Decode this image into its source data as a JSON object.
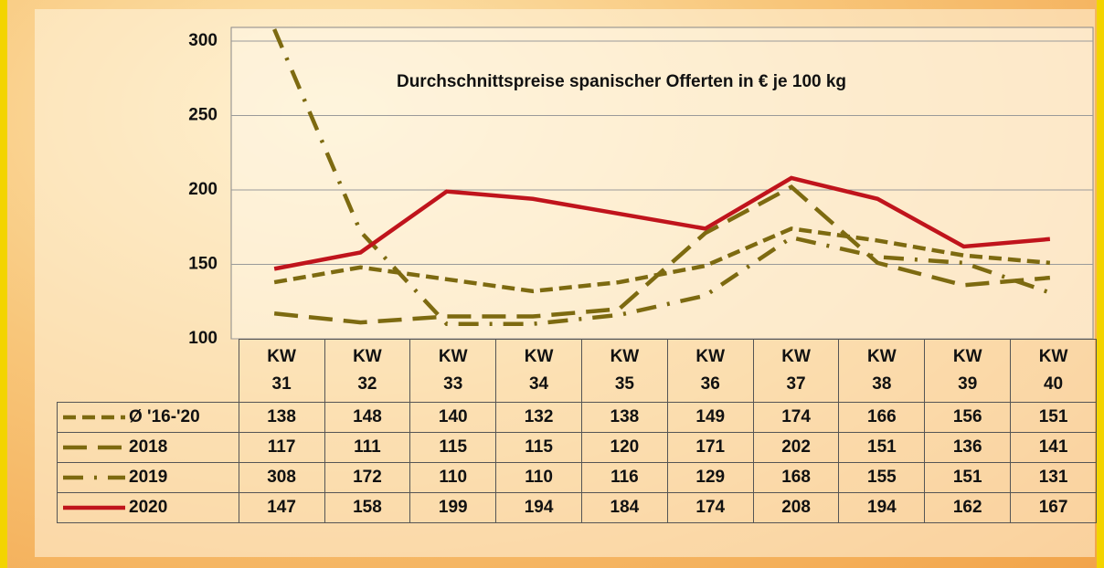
{
  "chart_data": {
    "type": "line",
    "title": "Durchschnittspreise spanischer Offerten in € je 100 kg",
    "categories": [
      "KW 31",
      "KW 32",
      "KW 33",
      "KW 34",
      "KW 35",
      "KW 36",
      "KW 37",
      "KW 38",
      "KW 39",
      "KW 40"
    ],
    "series": [
      {
        "name": "Ø '16-'20",
        "color": "#7d6a10",
        "line_style": "dashed",
        "values": [
          138,
          148,
          140,
          132,
          138,
          149,
          174,
          166,
          156,
          151
        ]
      },
      {
        "name": "2018",
        "color": "#7d6a10",
        "line_style": "long-dash",
        "values": [
          117,
          111,
          115,
          115,
          120,
          171,
          202,
          151,
          136,
          141
        ]
      },
      {
        "name": "2019",
        "color": "#7d6a10",
        "line_style": "dash-dot",
        "values": [
          308,
          172,
          110,
          110,
          116,
          129,
          168,
          155,
          151,
          131
        ]
      },
      {
        "name": "2020",
        "color": "#c0141c",
        "line_style": "solid",
        "values": [
          147,
          158,
          199,
          194,
          184,
          174,
          208,
          194,
          162,
          167
        ]
      }
    ],
    "ylim": [
      100,
      300
    ],
    "yticks": [
      100,
      150,
      200,
      250,
      300
    ],
    "grid": true
  }
}
